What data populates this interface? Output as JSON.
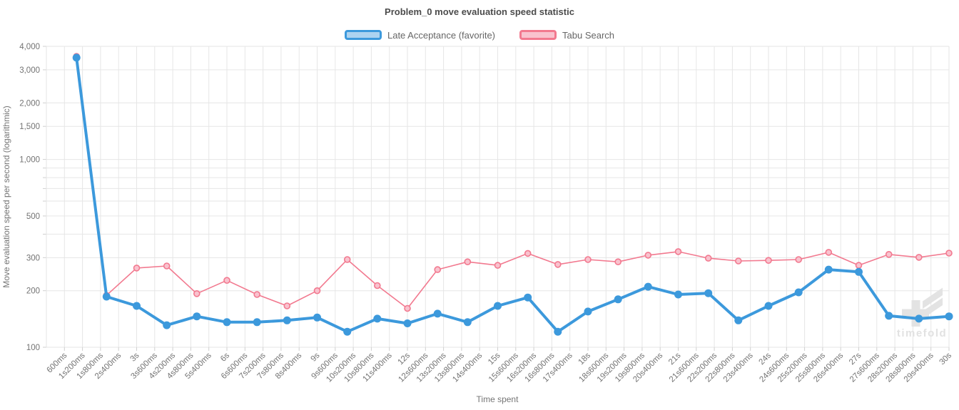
{
  "title": "Problem_0 move evaluation speed statistic",
  "watermark": {
    "text": "timefold"
  },
  "chart_data": {
    "type": "line",
    "title": "Problem_0 move evaluation speed statistic",
    "xlabel": "Time spent",
    "ylabel": "Move evaluation speed per second (logarithmic)",
    "y_scale": "logarithmic",
    "y_min": 100,
    "y_max": 4000,
    "grid": true,
    "legend_position": "top",
    "y_ticks": [
      {
        "value": 4000,
        "label": "4,000"
      },
      {
        "value": 3000,
        "label": "3,000"
      },
      {
        "value": 2000,
        "label": "2,000"
      },
      {
        "value": 1500,
        "label": "1,500"
      },
      {
        "value": 1000,
        "label": "1,000"
      },
      {
        "value": 500,
        "label": "500"
      },
      {
        "value": 300,
        "label": "300"
      },
      {
        "value": 200,
        "label": "200"
      },
      {
        "value": 100,
        "label": "100"
      }
    ],
    "y_minor_gridlines": [
      900,
      800,
      700,
      600,
      400
    ],
    "x_axis": {
      "max_seconds": 30,
      "tick_interval_seconds": 0.6,
      "tick_labels": [
        "600ms",
        "1s200ms",
        "1s800ms",
        "2s400ms",
        "3s",
        "3s600ms",
        "4s200ms",
        "4s800ms",
        "5s400ms",
        "6s",
        "6s600ms",
        "7s200ms",
        "7s800ms",
        "8s400ms",
        "9s",
        "9s600ms",
        "10s200ms",
        "10s800ms",
        "11s400ms",
        "12s",
        "12s600ms",
        "13s200ms",
        "13s800ms",
        "14s400ms",
        "15s",
        "15s600ms",
        "16s200ms",
        "16s800ms",
        "17s400ms",
        "18s",
        "18s600ms",
        "19s200ms",
        "19s800ms",
        "20s400ms",
        "21s",
        "21s600ms",
        "22s200ms",
        "22s800ms",
        "23s400ms",
        "24s",
        "24s600ms",
        "25s200ms",
        "25s800ms",
        "26s400ms",
        "27s",
        "27s600ms",
        "28s200ms",
        "28s800ms",
        "29s400ms",
        "30s"
      ]
    },
    "series": [
      {
        "name": "Late Acceptance (favorite)",
        "color": "#3C99DC",
        "fill_color": "#ADD3F0",
        "line_width": 4,
        "point_radius": 5.5,
        "x_seconds": [
          1,
          2,
          3,
          4,
          5,
          6,
          7,
          8,
          9,
          10,
          11,
          12,
          13,
          14,
          15,
          16,
          17,
          18,
          19,
          20,
          21,
          22,
          23,
          24,
          25,
          26,
          27,
          28,
          29,
          30
        ],
        "values": [
          3480,
          186,
          166,
          131,
          146,
          136,
          136,
          139,
          144,
          121,
          142,
          134,
          151,
          136,
          166,
          184,
          121,
          155,
          180,
          210,
          191,
          194,
          139,
          166,
          196,
          259,
          252,
          147,
          142,
          146
        ]
      },
      {
        "name": "Tabu Search",
        "color": "#F2798F",
        "fill_color": "#F9C2CE",
        "line_width": 1.6,
        "point_radius": 4,
        "x_seconds": [
          1,
          2,
          3,
          4,
          5,
          6,
          7,
          8,
          9,
          10,
          11,
          12,
          13,
          14,
          15,
          16,
          17,
          18,
          19,
          20,
          21,
          22,
          23,
          24,
          25,
          26,
          27,
          28,
          29,
          30
        ],
        "values": [
          3540,
          189,
          264,
          271,
          193,
          227,
          191,
          166,
          200,
          293,
          213,
          161,
          259,
          285,
          273,
          316,
          276,
          293,
          285,
          309,
          323,
          298,
          288,
          290,
          293,
          320,
          273,
          312,
          301,
          317
        ]
      }
    ]
  }
}
